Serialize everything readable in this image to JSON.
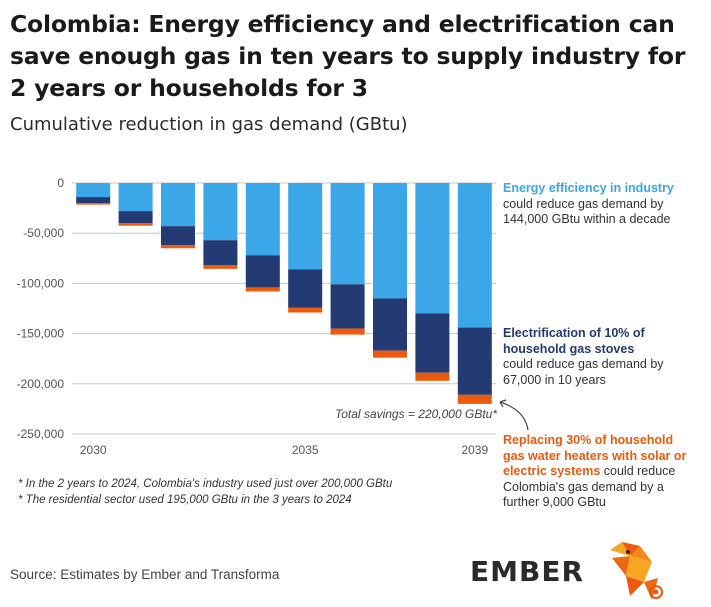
{
  "header": {
    "title": "Colombia: Energy efficiency and electrification can save enough gas in ten years to supply industry for 2 years or households for 3",
    "subtitle": "Cumulative reduction in gas demand (GBtu)"
  },
  "chart_data": {
    "type": "bar",
    "stacked": true,
    "categories": [
      "2030",
      "2031",
      "2032",
      "2033",
      "2034",
      "2035",
      "2036",
      "2037",
      "2038",
      "2039"
    ],
    "x_tick_labels": [
      "2030",
      "2035",
      "2039"
    ],
    "y_ticks": [
      0,
      -50000,
      -100000,
      -150000,
      -200000,
      -250000
    ],
    "y_tick_labels": [
      "0",
      "-50,000",
      "-100,000",
      "-150,000",
      "-200,000",
      "-250,000"
    ],
    "ylim": [
      -250000,
      0
    ],
    "series": [
      {
        "name": "Energy efficiency in industry",
        "color": "#3ba6e8",
        "values": [
          -14000,
          -28000,
          -43000,
          -57000,
          -72000,
          -86000,
          -101000,
          -115000,
          -130000,
          -144000
        ]
      },
      {
        "name": "Electrification of household gas stoves",
        "color": "#233a72",
        "values": [
          -6000,
          -12000,
          -19000,
          -25000,
          -32000,
          -38000,
          -44000,
          -52000,
          -59000,
          -67000
        ]
      },
      {
        "name": "Replacing household gas water heaters",
        "color": "#ee5a0c",
        "values": [
          -1500,
          -2500,
          -3000,
          -3500,
          -4000,
          -5000,
          -6000,
          -7000,
          -8000,
          -9000
        ]
      }
    ],
    "annotation_total": "Total savings = 220,000 GBtu*"
  },
  "annotations": {
    "efficiency": {
      "title": "Energy efficiency in industry",
      "text": "could reduce gas demand by 144,000 GBtu within a decade",
      "color": "#3ba6e8"
    },
    "stoves": {
      "title": "Electrification of 10% of household gas stoves",
      "text": "could reduce gas demand by 67,000 in 10 years",
      "color": "#233a72"
    },
    "heaters": {
      "title": "Replacing 30% of household gas water heaters with solar or electric systems",
      "text": "could reduce Colombia's gas demand by a further 9,000 GBtu",
      "color": "#ee5a0c"
    }
  },
  "footnotes": [
    "* In the 2 years to 2024, Colombia's industry used just over 200,000 GBtu",
    "* The residential sector used 195,000 GBtu in the 3 years to 2024"
  ],
  "source": "Source: Estimates by Ember and Transforma",
  "logo": {
    "text": "EMBER"
  }
}
